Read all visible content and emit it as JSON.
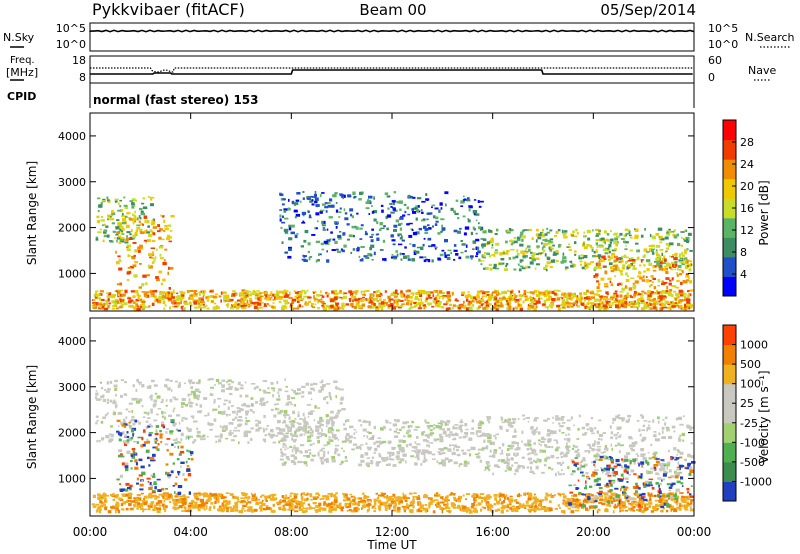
{
  "header": {
    "title": "Pykkvibaer (fitACF)",
    "beam": "Beam 00",
    "date": "05/Sep/2014"
  },
  "noise_panel": {
    "left_label": "N.Sky",
    "left_ticks": [
      "10^5",
      "10^0"
    ],
    "right_label": "N.Search",
    "right_ticks": [
      "10^5",
      "10^0"
    ]
  },
  "freq_panel": {
    "left_label_1": "Freq.",
    "left_label_2": "[MHz]",
    "left_ticks": [
      "18",
      "8"
    ],
    "right_label": "Nave",
    "right_ticks": [
      "60",
      "0"
    ]
  },
  "cpid_panel": {
    "label": "CPID",
    "text": "normal (fast stereo) 153"
  },
  "chart_data": [
    {
      "type": "heatmap",
      "name": "power",
      "ylabel": "Slant Range [km]",
      "xlabel": "",
      "ylim": [
        180,
        4500
      ],
      "yticks": [
        "4000",
        "3000",
        "2000",
        "1000"
      ],
      "xlim": [
        0,
        24
      ],
      "colorbar": {
        "label": "Power [dB]",
        "ticks": [
          "28",
          "24",
          "20",
          "16",
          "12",
          "8",
          "4"
        ],
        "colors": [
          "#0000ff",
          "#2050c8",
          "#3c8c64",
          "#5ab464",
          "#c8dc28",
          "#f0c800",
          "#f08c00",
          "#f03c00",
          "#ff0000"
        ]
      },
      "echo_bands": [
        {
          "t": [
            0.0,
            24.0
          ],
          "range": [
            250,
            650
          ],
          "level": "high"
        },
        {
          "t": [
            0.2,
            2.5
          ],
          "range": [
            1700,
            2700
          ],
          "level": "medium"
        },
        {
          "t": [
            1.0,
            3.2
          ],
          "range": [
            700,
            2300
          ],
          "level": "high"
        },
        {
          "t": [
            7.5,
            15.5
          ],
          "range": [
            1300,
            2800
          ],
          "level": "low"
        },
        {
          "t": [
            15.5,
            24.0
          ],
          "range": [
            1100,
            2000
          ],
          "level": "medium"
        },
        {
          "t": [
            20.0,
            24.0
          ],
          "range": [
            300,
            1400
          ],
          "level": "high"
        }
      ]
    },
    {
      "type": "heatmap",
      "name": "velocity",
      "ylabel": "Slant Range [km]",
      "xlabel": "Time UT",
      "ylim": [
        180,
        4500
      ],
      "yticks": [
        "4000",
        "3000",
        "2000",
        "1000"
      ],
      "xticks": [
        "00:00",
        "04:00",
        "08:00",
        "12:00",
        "16:00",
        "20:00",
        "00:00"
      ],
      "xlim": [
        0,
        24
      ],
      "colorbar": {
        "label": "Velocity [m s⁻¹]",
        "ticks": [
          "1000",
          "500",
          "100",
          "25",
          "-25",
          "-100",
          "-500",
          "-1000"
        ],
        "colors": [
          "#2040c0",
          "#3c8c50",
          "#50b050",
          "#a0d070",
          "#c8c8c0",
          "#c8c8c0",
          "#f0b020",
          "#f08000",
          "#ff4000"
        ]
      },
      "echo_bands": [
        {
          "t": [
            0.0,
            24.0
          ],
          "range": [
            300,
            700
          ],
          "class": "away_slow"
        },
        {
          "t": [
            0.2,
            10.0
          ],
          "range": [
            1800,
            3200
          ],
          "class": "ground"
        },
        {
          "t": [
            7.5,
            15.5
          ],
          "range": [
            1300,
            2300
          ],
          "class": "ground"
        },
        {
          "t": [
            1.0,
            4.0
          ],
          "range": [
            700,
            2300
          ],
          "class": "mixed"
        },
        {
          "t": [
            15.5,
            24.0
          ],
          "range": [
            1100,
            2400
          ],
          "class": "ground"
        },
        {
          "t": [
            19.0,
            24.0
          ],
          "range": [
            400,
            1500
          ],
          "class": "mixed"
        }
      ]
    }
  ]
}
